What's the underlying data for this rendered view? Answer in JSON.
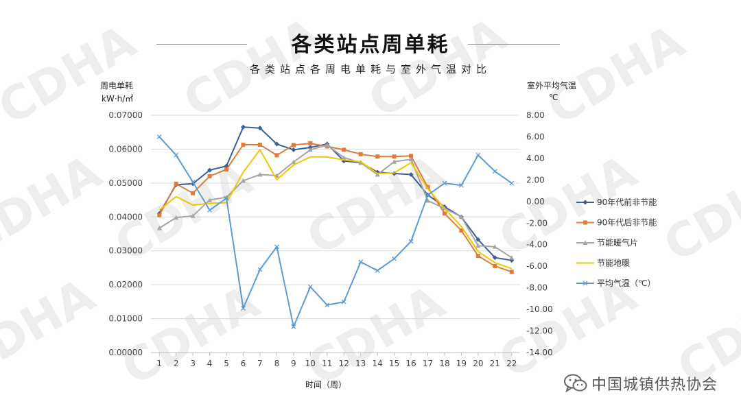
{
  "chart_title": "各类站点周单耗",
  "chart_subtitle": "各类站点各周电单耗与室外气温对比",
  "watermark": "CDHA",
  "brand": {
    "text": "中国城镇供热协会",
    "icon": "wechat-icon"
  },
  "chart_data": {
    "type": "line",
    "title": "各类站点周单耗",
    "subtitle": "各类站点各周电单耗与室外气温对比",
    "xlabel": "时间（周）",
    "ylabel_left_line1": "周电单耗",
    "ylabel_left_line2": "kW·h/㎡",
    "ylabel_right_line1": "室外平均气温",
    "ylabel_right_line2": "℃",
    "categories": [
      "1",
      "2",
      "3",
      "4",
      "5",
      "6",
      "7",
      "8",
      "9",
      "10",
      "11",
      "12",
      "13",
      "14",
      "15",
      "16",
      "17",
      "18",
      "19",
      "20",
      "21",
      "22"
    ],
    "ylim_left": [
      0,
      0.07
    ],
    "ylim_right": [
      -14,
      8
    ],
    "yticks_left": [
      "0.00000",
      "0.01000",
      "0.02000",
      "0.03000",
      "0.04000",
      "0.05000",
      "0.06000",
      "0.07000"
    ],
    "yticks_right": [
      "-14.00",
      "-12.00",
      "-10.00",
      "-8.00",
      "-6.00",
      "-4.00",
      "-2.00",
      "0.00",
      "2.00",
      "4.00",
      "6.00",
      "8.00"
    ],
    "legend_position": "right",
    "grid": true,
    "series": [
      {
        "name": "90年代前非节能",
        "axis": "left",
        "color": "#3a5d9c",
        "marker": "diamond",
        "values": [
          0.041,
          0.0495,
          0.0498,
          0.0538,
          0.055,
          0.0665,
          0.0662,
          0.0615,
          0.0598,
          0.0605,
          0.0615,
          0.0565,
          0.056,
          0.0532,
          0.0528,
          0.0525,
          0.0465,
          0.043,
          0.04,
          0.0333,
          0.028,
          0.0272
        ]
      },
      {
        "name": "90年代后非节能",
        "axis": "left",
        "color": "#e07b39",
        "marker": "square",
        "values": [
          0.0405,
          0.0498,
          0.047,
          0.052,
          0.054,
          0.0613,
          0.0613,
          0.0582,
          0.0612,
          0.0617,
          0.0608,
          0.0598,
          0.0585,
          0.0578,
          0.0578,
          0.058,
          0.0488,
          0.041,
          0.036,
          0.0285,
          0.0255,
          0.0238
        ]
      },
      {
        "name": "节能暖气片",
        "axis": "left",
        "color": "#a5a5a5",
        "marker": "triangle",
        "values": [
          0.0367,
          0.0398,
          0.0403,
          0.045,
          0.0458,
          0.0507,
          0.0525,
          0.0522,
          0.0562,
          0.0598,
          0.0612,
          0.0575,
          0.056,
          0.0525,
          0.0563,
          0.057,
          0.0448,
          0.0425,
          0.04,
          0.0315,
          0.0312,
          0.028
        ]
      },
      {
        "name": "节能地暖",
        "axis": "left",
        "color": "#f2c500",
        "marker": "none",
        "values": [
          0.042,
          0.046,
          0.0435,
          0.044,
          0.0442,
          0.0532,
          0.0598,
          0.051,
          0.0553,
          0.0577,
          0.0577,
          0.0568,
          0.0563,
          0.0528,
          0.053,
          0.056,
          0.0483,
          0.0425,
          0.0372,
          0.0298,
          0.0265,
          0.0248
        ]
      },
      {
        "name": "平均气温（℃）",
        "axis": "right",
        "color": "#5b9bd5",
        "marker": "x",
        "values": [
          6.0,
          4.3,
          1.8,
          -0.8,
          0.3,
          -9.9,
          -6.3,
          -4.2,
          -11.6,
          -7.9,
          -9.6,
          -9.3,
          -5.6,
          -6.4,
          -5.3,
          -3.7,
          0.6,
          1.7,
          1.5,
          4.3,
          2.8,
          1.7
        ]
      }
    ]
  }
}
